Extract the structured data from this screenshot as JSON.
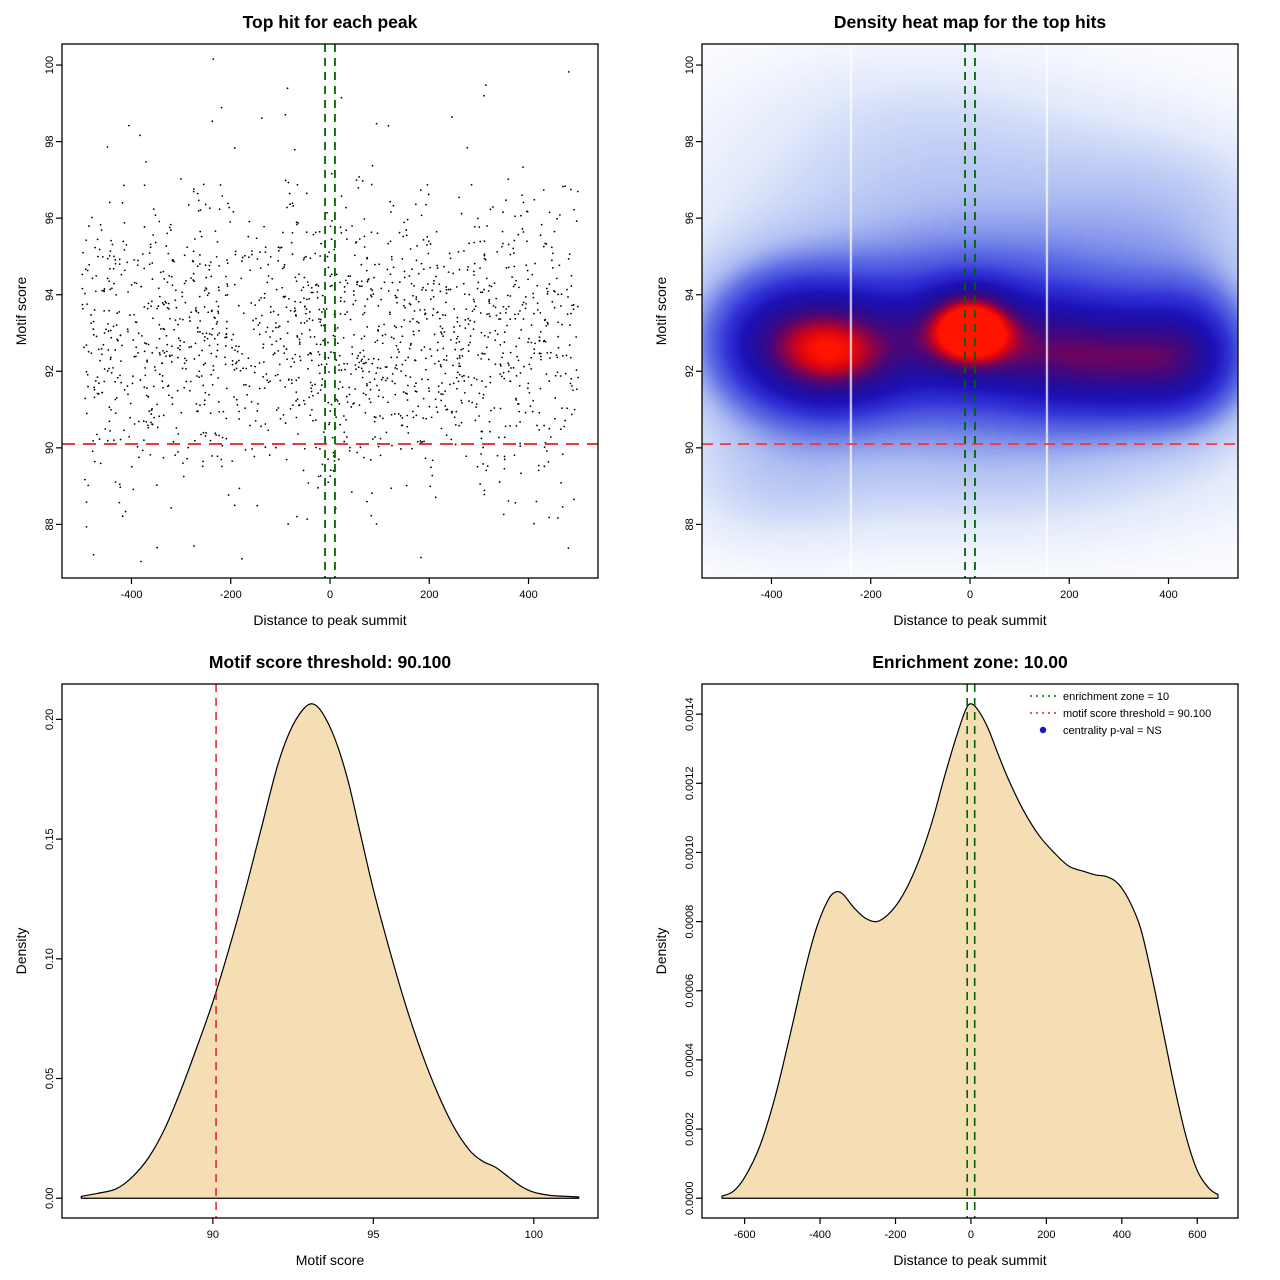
{
  "figure": {
    "background": "#ffffff",
    "panel_size": 640,
    "accent_colors": {
      "threshold_red": "#e02020",
      "zone_green": "#006400",
      "density_fill": "#f5deb3",
      "legend_point_blue": "#1414c8"
    }
  },
  "chart_data": [
    {
      "id": "top-hits-scatter",
      "type": "scatter",
      "title": "Top hit for each peak",
      "xlabel": "Distance to peak summit",
      "ylabel": "Motif score",
      "xlim": [
        -540,
        540
      ],
      "ylim": [
        86.6,
        100.55
      ],
      "xticks": [
        -400,
        -200,
        0,
        200,
        400
      ],
      "xtick_labels": [
        "-400",
        "-200",
        "0",
        "200",
        "400"
      ],
      "yticks": [
        88,
        90,
        92,
        94,
        96,
        98,
        100
      ],
      "ytick_labels": [
        "88",
        "90",
        "92",
        "94",
        "96",
        "98",
        "100"
      ],
      "grid": false,
      "point_color": "#000000",
      "point_radius": 0.9,
      "points_generator": {
        "n": 1700,
        "seed": 20240613,
        "x_min": -500,
        "x_max": 500,
        "x_mixture": [
          {
            "w": 0.55,
            "kind": "uniform"
          },
          {
            "w": 0.23,
            "kind": "normal",
            "mean": 0,
            "sd": 160
          },
          {
            "w": 0.12,
            "kind": "normal",
            "mean": -370,
            "sd": 110
          },
          {
            "w": 0.1,
            "kind": "normal",
            "mean": 350,
            "sd": 120
          }
        ],
        "y_main": {
          "mean": 92.9,
          "sd": 1.95,
          "w": 0.97
        },
        "y_outlier": {
          "min": 87.1,
          "max": 100.2
        },
        "y_min": 87.0,
        "y_max": 100.35
      },
      "hlines": [
        {
          "y": 90.1,
          "color": "#e02020",
          "dash": "13,8",
          "width": 1.8,
          "name": "motif-score-threshold-line"
        }
      ],
      "vlines": [
        {
          "x": -10,
          "color": "#006400",
          "dash": "8,6",
          "width": 1.8,
          "name": "enrichment-zone-left-line"
        },
        {
          "x": 10,
          "color": "#006400",
          "dash": "8,6",
          "width": 1.8,
          "name": "enrichment-zone-right-line"
        }
      ]
    },
    {
      "id": "top-hits-heatmap",
      "type": "heatmap",
      "title": "Density heat map for the top hits",
      "xlabel": "Distance to peak summit",
      "ylabel": "Motif score",
      "xlim": [
        -540,
        540
      ],
      "ylim": [
        86.6,
        100.55
      ],
      "xticks": [
        -400,
        -200,
        0,
        200,
        400
      ],
      "xtick_labels": [
        "-400",
        "-200",
        "0",
        "200",
        "400"
      ],
      "yticks": [
        88,
        90,
        92,
        94,
        96,
        98,
        100
      ],
      "ytick_labels": [
        "88",
        "90",
        "92",
        "94",
        "96",
        "98",
        "100"
      ],
      "colormap": [
        [
          0.0,
          "#ffffff"
        ],
        [
          0.06,
          "#f7f9fe"
        ],
        [
          0.14,
          "#e3eafb"
        ],
        [
          0.26,
          "#aebef2"
        ],
        [
          0.38,
          "#5e6ee4"
        ],
        [
          0.5,
          "#3333d6"
        ],
        [
          0.62,
          "#1c12b8"
        ],
        [
          0.73,
          "#250c97"
        ],
        [
          0.82,
          "#4a0778"
        ],
        [
          0.89,
          "#8e0347"
        ],
        [
          0.95,
          "#d90413"
        ],
        [
          1.0,
          "#ff1400"
        ]
      ],
      "kernels": [
        {
          "x": 0,
          "y": 93.15,
          "sx": 60,
          "sy": 0.7,
          "a": 0.5
        },
        {
          "x": 0,
          "y": 92.85,
          "sx": 250,
          "sy": 1.5,
          "a": 0.33
        },
        {
          "x": -150,
          "y": 92.55,
          "sx": 120,
          "sy": 1.1,
          "a": 0.16
        },
        {
          "x": 150,
          "y": 92.4,
          "sx": 110,
          "sy": 1.05,
          "a": 0.2
        },
        {
          "x": -380,
          "y": 92.7,
          "sx": 115,
          "sy": 1.3,
          "a": 0.5
        },
        {
          "x": -265,
          "y": 92.3,
          "sx": 80,
          "sy": 1.0,
          "a": 0.22
        },
        {
          "x": 330,
          "y": 92.2,
          "sx": 125,
          "sy": 1.1,
          "a": 0.38
        },
        {
          "x": 455,
          "y": 92.5,
          "sx": 85,
          "sy": 1.25,
          "a": 0.3
        },
        {
          "x": 0,
          "y": 93.4,
          "sx": 470,
          "sy": 3.3,
          "a": 0.22
        },
        {
          "x": 0,
          "y": 97.0,
          "sx": 420,
          "sy": 2.1,
          "a": 0.1
        },
        {
          "x": -140,
          "y": 99.3,
          "sx": 260,
          "sy": 1.4,
          "a": 0.06
        },
        {
          "x": 80,
          "y": 89.3,
          "sx": 430,
          "sy": 1.5,
          "a": 0.12
        },
        {
          "x": -420,
          "y": 88.8,
          "sx": 150,
          "sy": 1.3,
          "a": 0.09
        },
        {
          "x": 430,
          "y": 96.0,
          "sx": 170,
          "sy": 1.7,
          "a": 0.09
        }
      ],
      "white_lines_x": [
        -240,
        155
      ],
      "hlines": [
        {
          "y": 90.1,
          "color": "#ee3333",
          "dash": "11,7",
          "width": 1.6,
          "name": "motif-score-threshold-line"
        }
      ],
      "vlines": [
        {
          "x": -10,
          "color": "#006400",
          "dash": "8,6",
          "width": 1.8,
          "name": "enrichment-zone-left-line"
        },
        {
          "x": 10,
          "color": "#006400",
          "dash": "8,6",
          "width": 1.8,
          "name": "enrichment-zone-right-line"
        }
      ]
    },
    {
      "id": "score-density",
      "type": "density",
      "title": "Motif score threshold: 90.100",
      "xlabel": "Motif score",
      "ylabel": "Density",
      "xlim": [
        85.3,
        102.0
      ],
      "ylim": [
        -0.00826,
        0.21478
      ],
      "xticks": [
        90,
        95,
        100
      ],
      "xtick_labels": [
        "90",
        "95",
        "100"
      ],
      "yticks": [
        0,
        0.05,
        0.1,
        0.15,
        0.2
      ],
      "ytick_labels": [
        "0.00",
        "0.05",
        "0.10",
        "0.15",
        "0.20"
      ],
      "fill": "#f5deb3",
      "stroke": "#000000",
      "baseline": 0,
      "curve_x": [
        85.9,
        86.4,
        87,
        87.5,
        88,
        88.5,
        89,
        89.5,
        90,
        90.5,
        91,
        91.5,
        92,
        92.4,
        92.8,
        93.1,
        93.4,
        93.8,
        94.2,
        94.6,
        95,
        95.5,
        96,
        96.5,
        97,
        97.5,
        98,
        98.4,
        98.8,
        99.2,
        99.6,
        100,
        100.5,
        101,
        101.4
      ],
      "curve_y": [
        0.0008,
        0.002,
        0.004,
        0.009,
        0.017,
        0.029,
        0.045,
        0.063,
        0.082,
        0.104,
        0.128,
        0.154,
        0.18,
        0.195,
        0.204,
        0.2065,
        0.203,
        0.192,
        0.175,
        0.152,
        0.129,
        0.104,
        0.081,
        0.061,
        0.044,
        0.03,
        0.02,
        0.0155,
        0.013,
        0.009,
        0.005,
        0.0025,
        0.0012,
        0.0008,
        0.0005
      ],
      "vlines": [
        {
          "x": 90.1,
          "color": "#e02020",
          "dash": "8,6",
          "width": 1.5,
          "name": "motif-score-threshold-line"
        }
      ]
    },
    {
      "id": "position-density",
      "type": "density",
      "title": "Enrichment zone: 10.00",
      "xlabel": "Distance to peak summit",
      "ylabel": "Density",
      "xlim": [
        -713,
        708
      ],
      "ylim": [
        -5.72e-05,
        0.0014872
      ],
      "xticks": [
        -600,
        -400,
        -200,
        0,
        200,
        400,
        600
      ],
      "xtick_labels": [
        "-600",
        "-400",
        "-200",
        "0",
        "200",
        "400",
        "600"
      ],
      "yticks": [
        0,
        0.0002,
        0.0004,
        0.0006,
        0.0008,
        0.001,
        0.0012,
        0.0014
      ],
      "ytick_labels": [
        "0.0000",
        "0.0002",
        "0.0004",
        "0.0006",
        "0.0008",
        "0.0010",
        "0.0012",
        "0.0014"
      ],
      "fill": "#f5deb3",
      "stroke": "#000000",
      "baseline": 0,
      "curve_x": [
        -660,
        -630,
        -600,
        -560,
        -520,
        -480,
        -440,
        -410,
        -380,
        -360,
        -340,
        -310,
        -280,
        -250,
        -220,
        -190,
        -160,
        -130,
        -100,
        -70,
        -40,
        -15,
        0,
        20,
        45,
        70,
        100,
        140,
        180,
        220,
        260,
        300,
        330,
        360,
        390,
        420,
        450,
        480,
        510,
        540,
        570,
        600,
        630,
        655
      ],
      "curve_y": [
        6e-06,
        2e-05,
        6e-05,
        0.00015,
        0.00029,
        0.00047,
        0.00066,
        0.00078,
        0.00086,
        0.000885,
        0.00088,
        0.00084,
        0.00081,
        0.0008,
        0.00082,
        0.00086,
        0.00092,
        0.001,
        0.0011,
        0.00122,
        0.00133,
        0.00141,
        0.00143,
        0.00141,
        0.00136,
        0.00129,
        0.00121,
        0.00112,
        0.00105,
        0.001,
        0.00096,
        0.000945,
        0.000935,
        0.00093,
        0.00091,
        0.00086,
        0.00078,
        0.00064,
        0.00048,
        0.00032,
        0.00018,
        8e-05,
        3e-05,
        1e-05
      ],
      "vlines": [
        {
          "x": -10,
          "color": "#006400",
          "dash": "8,6",
          "width": 1.6,
          "name": "enrichment-zone-left-line"
        },
        {
          "x": 10,
          "color": "#006400",
          "dash": "8,6",
          "width": 1.6,
          "name": "enrichment-zone-right-line"
        }
      ],
      "legend": {
        "position": "top-right",
        "items": [
          {
            "swatch": "line",
            "color": "#006400",
            "dash": "2,4",
            "label": "enrichment zone = 10"
          },
          {
            "swatch": "line",
            "color": "#e02020",
            "dash": "2,4",
            "label": "motif score threshold = 90.100"
          },
          {
            "swatch": "point",
            "color": "#1414c8",
            "label": "centrality p-val = NS"
          }
        ]
      }
    }
  ]
}
